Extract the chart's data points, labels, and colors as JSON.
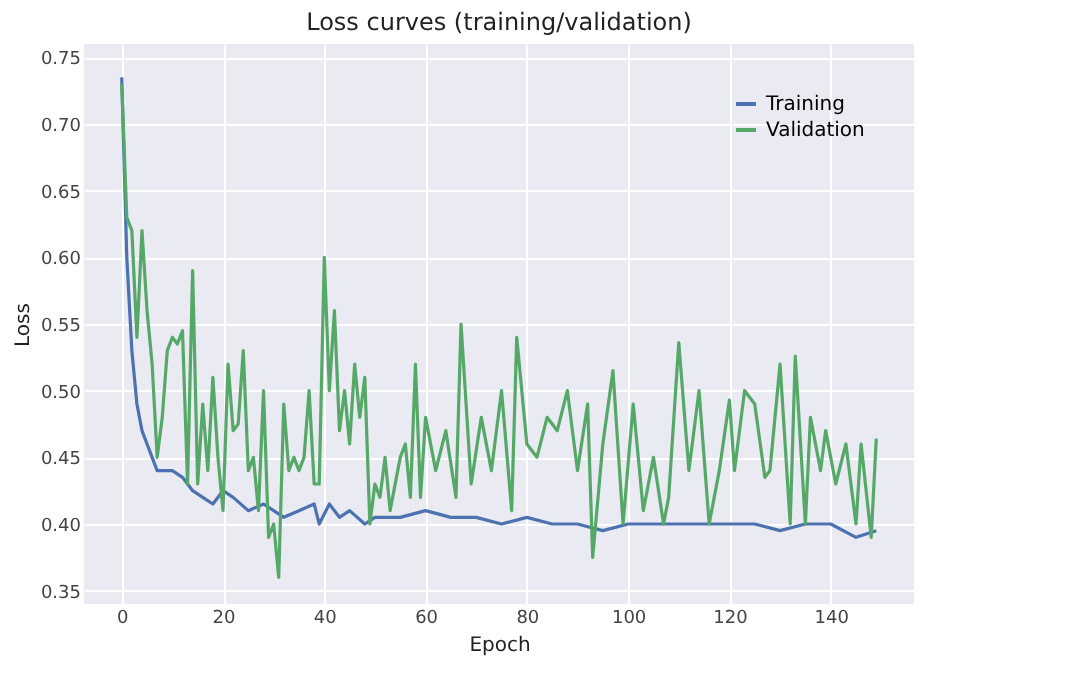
{
  "chart_data": {
    "type": "line",
    "title": "Loss curves (training/validation)",
    "xlabel": "Epoch",
    "ylabel": "Loss",
    "xlim": [
      -7.45,
      156.45
    ],
    "xticks": [
      0,
      20,
      40,
      60,
      80,
      100,
      120,
      140
    ],
    "ylim": [
      0.34,
      0.76
    ],
    "yticks": [
      {
        "value": 0.35,
        "label": "0.35"
      },
      {
        "value": 0.4,
        "label": "0.40"
      },
      {
        "value": 0.45,
        "label": "0.45"
      },
      {
        "value": 0.5,
        "label": "0.50"
      },
      {
        "value": 0.55,
        "label": "0.55"
      },
      {
        "value": 0.6,
        "label": "0.60"
      },
      {
        "value": 0.65,
        "label": "0.65"
      },
      {
        "value": 0.7,
        "label": "0.70"
      },
      {
        "value": 0.75,
        "label": "0.75"
      }
    ],
    "grid": true,
    "legend": "top right",
    "marker": "none",
    "line_style": "solid",
    "series": [
      {
        "name": "Training",
        "color": "#4c72b0",
        "x": [
          0,
          1,
          2,
          3,
          4,
          5,
          6,
          7,
          8,
          10,
          12,
          14,
          16,
          18,
          20,
          22,
          25,
          28,
          30,
          32,
          35,
          38,
          39,
          41,
          43,
          45,
          48,
          50,
          55,
          60,
          65,
          70,
          75,
          80,
          85,
          90,
          95,
          100,
          105,
          110,
          115,
          120,
          125,
          130,
          135,
          140,
          145,
          149
        ],
        "values": [
          0.735,
          0.6,
          0.53,
          0.49,
          0.47,
          0.46,
          0.45,
          0.44,
          0.44,
          0.44,
          0.435,
          0.425,
          0.42,
          0.415,
          0.425,
          0.42,
          0.41,
          0.415,
          0.41,
          0.405,
          0.41,
          0.415,
          0.4,
          0.415,
          0.405,
          0.41,
          0.4,
          0.405,
          0.405,
          0.41,
          0.405,
          0.405,
          0.4,
          0.405,
          0.4,
          0.4,
          0.395,
          0.4,
          0.4,
          0.4,
          0.4,
          0.4,
          0.4,
          0.395,
          0.4,
          0.4,
          0.39,
          0.395
        ]
      },
      {
        "name": "Validation",
        "color": "#55a868",
        "x": [
          0,
          1,
          2,
          3,
          4,
          5,
          6,
          7,
          8,
          9,
          10,
          11,
          12,
          13,
          14,
          15,
          16,
          17,
          18,
          19,
          20,
          21,
          22,
          23,
          24,
          25,
          26,
          27,
          28,
          29,
          30,
          31,
          32,
          33,
          34,
          35,
          36,
          37,
          38,
          39,
          40,
          41,
          42,
          43,
          44,
          45,
          46,
          47,
          48,
          49,
          50,
          51,
          52,
          53,
          54,
          55,
          56,
          57,
          58,
          59,
          60,
          62,
          64,
          66,
          67,
          69,
          71,
          73,
          75,
          77,
          78,
          80,
          82,
          84,
          86,
          88,
          90,
          92,
          93,
          95,
          97,
          99,
          101,
          103,
          105,
          107,
          108,
          110,
          112,
          114,
          116,
          118,
          120,
          121,
          123,
          125,
          127,
          128,
          130,
          132,
          133,
          135,
          136,
          138,
          139,
          141,
          143,
          145,
          146,
          148,
          149
        ],
        "values": [
          0.73,
          0.63,
          0.62,
          0.54,
          0.62,
          0.56,
          0.52,
          0.45,
          0.48,
          0.53,
          0.54,
          0.535,
          0.545,
          0.43,
          0.59,
          0.43,
          0.49,
          0.44,
          0.51,
          0.45,
          0.41,
          0.52,
          0.47,
          0.475,
          0.53,
          0.44,
          0.45,
          0.41,
          0.5,
          0.39,
          0.4,
          0.36,
          0.49,
          0.44,
          0.45,
          0.44,
          0.45,
          0.5,
          0.43,
          0.43,
          0.6,
          0.5,
          0.56,
          0.47,
          0.5,
          0.46,
          0.52,
          0.48,
          0.51,
          0.4,
          0.43,
          0.42,
          0.45,
          0.41,
          0.43,
          0.45,
          0.46,
          0.42,
          0.52,
          0.42,
          0.48,
          0.44,
          0.47,
          0.42,
          0.55,
          0.43,
          0.48,
          0.44,
          0.5,
          0.41,
          0.54,
          0.46,
          0.45,
          0.48,
          0.47,
          0.5,
          0.44,
          0.49,
          0.375,
          0.46,
          0.515,
          0.4,
          0.49,
          0.41,
          0.45,
          0.4,
          0.42,
          0.536,
          0.44,
          0.5,
          0.4,
          0.44,
          0.493,
          0.44,
          0.5,
          0.49,
          0.435,
          0.44,
          0.52,
          0.4,
          0.526,
          0.4,
          0.48,
          0.44,
          0.47,
          0.43,
          0.46,
          0.4,
          0.46,
          0.39,
          0.464
        ]
      }
    ]
  }
}
